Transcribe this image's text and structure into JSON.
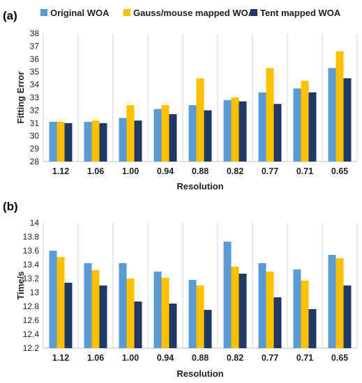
{
  "legend": [
    {
      "label": "Original WOA",
      "color": "#5b9bd5"
    },
    {
      "label": "Gauss/mouse mapped WOA",
      "color": "#ffc000"
    },
    {
      "label": "Tent mapped WOA",
      "color": "#203864"
    }
  ],
  "chart_data": [
    {
      "type": "bar",
      "panel_label": "(a)",
      "xlabel": "Resolution",
      "ylabel": "Fitting Error",
      "ylim": [
        28,
        38
      ],
      "yticks": [
        "28",
        "29",
        "30",
        "31",
        "32",
        "33",
        "34",
        "35",
        "36",
        "37",
        "38"
      ],
      "categories": [
        "1.12",
        "1.06",
        "1.00",
        "0.94",
        "0.88",
        "0.82",
        "0.77",
        "0.71",
        "0.65"
      ],
      "grid": "vertical separators",
      "legend_position": "top",
      "series": [
        {
          "name": "Original WOA",
          "color": "#5b9bd5",
          "values": [
            31.1,
            31.1,
            31.4,
            32.1,
            32.4,
            32.8,
            33.4,
            33.7,
            35.3
          ]
        },
        {
          "name": "Gauss/mouse mapped WOA",
          "color": "#ffc000",
          "values": [
            31.1,
            31.2,
            32.4,
            32.4,
            34.5,
            33.0,
            35.3,
            34.3,
            36.6
          ]
        },
        {
          "name": "Tent mapped WOA",
          "color": "#203864",
          "values": [
            31.0,
            31.0,
            31.2,
            31.7,
            32.0,
            32.7,
            32.5,
            33.4,
            34.5
          ]
        }
      ]
    },
    {
      "type": "bar",
      "panel_label": "(b)",
      "xlabel": "Resolution",
      "ylabel": "Time/s",
      "ylim": [
        12.2,
        14
      ],
      "yticks": [
        "12.2",
        "12.4",
        "12.6",
        "12.8",
        "13",
        "13.2",
        "13.4",
        "13.6",
        "13.8",
        "14"
      ],
      "categories": [
        "1.12",
        "1.06",
        "1.00",
        "0.94",
        "0.88",
        "0.82",
        "0.77",
        "0.71",
        "0.65"
      ],
      "grid": "vertical separators",
      "series": [
        {
          "name": "Original WOA",
          "color": "#5b9bd5",
          "values": [
            13.6,
            13.42,
            13.42,
            13.3,
            13.18,
            13.73,
            13.42,
            13.33,
            13.54
          ]
        },
        {
          "name": "Gauss/mouse mapped WOA",
          "color": "#ffc000",
          "values": [
            13.51,
            13.32,
            13.2,
            13.21,
            13.1,
            13.37,
            13.3,
            13.17,
            13.49
          ]
        },
        {
          "name": "Tent mapped WOA",
          "color": "#203864",
          "values": [
            13.14,
            13.1,
            12.87,
            12.84,
            12.75,
            13.27,
            12.93,
            12.76,
            13.1
          ]
        }
      ]
    }
  ]
}
